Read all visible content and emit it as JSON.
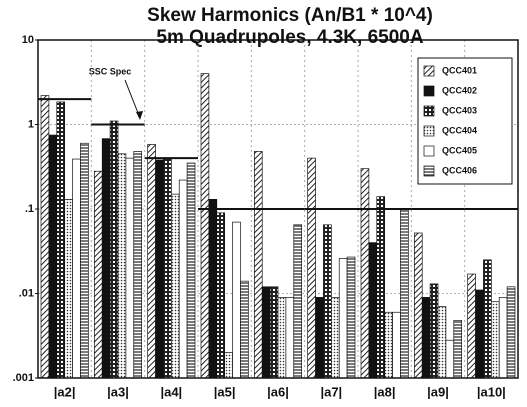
{
  "chart_data": {
    "type": "bar",
    "title": "Skew Harmonics (An/B1 * 10^4)",
    "subtitle": "5m Quadrupoles, 4.3K, 6500A",
    "annotation": "SSC Spec",
    "log_scale": true,
    "grid": true,
    "legend": "upper right",
    "categories": [
      "|a2|",
      "|a3|",
      "|a4|",
      "|a5|",
      "|a6|",
      "|a7|",
      "|a8|",
      "|a9|",
      "|a10|"
    ],
    "series": [
      {
        "name": "QCC401",
        "color": "#555555",
        "pattern": "hatch",
        "values": [
          2.2,
          0.28,
          0.58,
          4.0,
          0.48,
          0.4,
          0.3,
          0.052,
          0.017
        ]
      },
      {
        "name": "QCC402",
        "color": "#111111",
        "pattern": "solid",
        "values": [
          0.75,
          0.68,
          0.38,
          0.13,
          0.012,
          0.009,
          0.04,
          0.009,
          0.011
        ]
      },
      {
        "name": "QCC403",
        "color": "#222222",
        "pattern": "cross",
        "values": [
          1.85,
          1.1,
          0.4,
          0.09,
          0.012,
          0.065,
          0.14,
          0.013,
          0.025
        ]
      },
      {
        "name": "QCC404",
        "color": "#666666",
        "pattern": "dots",
        "values": [
          0.13,
          0.45,
          0.15,
          0.002,
          0.009,
          0.009,
          0.006,
          0.007,
          0.008
        ]
      },
      {
        "name": "QCC405",
        "color": "#ffffff",
        "pattern": "white",
        "values": [
          0.39,
          0.4,
          0.22,
          0.07,
          0.009,
          0.026,
          0.006,
          0.0028,
          0.009
        ]
      },
      {
        "name": "QCC406",
        "color": "#444444",
        "pattern": "hlines",
        "values": [
          0.6,
          0.48,
          0.35,
          0.014,
          0.065,
          0.027,
          0.1,
          0.0048,
          0.012
        ]
      }
    ],
    "spec": [
      2,
      1,
      0.4,
      0.1,
      0.1,
      0.1,
      0.1,
      0.1,
      0.1
    ],
    "ylim": [
      0.001,
      10
    ],
    "yticks": [
      10,
      1,
      {
        "value": 0.1,
        "label": ".1"
      },
      {
        "value": 0.01,
        "label": ".01"
      },
      {
        "value": 0.001,
        "label": ".001"
      }
    ]
  }
}
